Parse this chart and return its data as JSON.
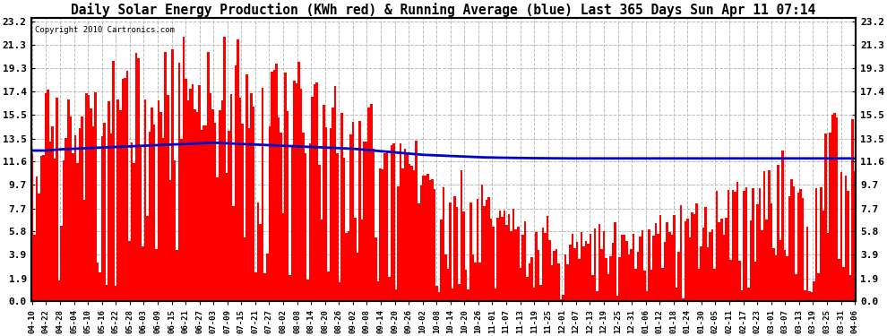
{
  "title": "Daily Solar Energy Production (KWh red) & Running Average (blue) Last 365 Days Sun Apr 11 07:14",
  "copyright": "Copyright 2010 Cartronics.com",
  "yticks": [
    0.0,
    1.9,
    3.9,
    5.8,
    7.7,
    9.7,
    11.6,
    13.5,
    15.5,
    17.4,
    19.3,
    21.3,
    23.2
  ],
  "ylim": [
    0.0,
    23.5
  ],
  "bar_color": "#ff0000",
  "avg_color": "#0000cc",
  "bg_color": "#ffffff",
  "grid_color": "#bbbbbb",
  "title_fontsize": 10.5,
  "xlabel_fontsize": 6.5,
  "ylabel_fontsize": 8,
  "xtick_labels": [
    "04-10",
    "04-22",
    "04-28",
    "05-04",
    "05-10",
    "05-16",
    "05-22",
    "05-28",
    "06-03",
    "06-09",
    "06-15",
    "06-21",
    "06-27",
    "07-03",
    "07-09",
    "07-15",
    "07-21",
    "07-27",
    "08-02",
    "08-08",
    "08-14",
    "08-20",
    "08-26",
    "09-02",
    "09-08",
    "09-14",
    "09-20",
    "09-26",
    "10-02",
    "10-08",
    "10-14",
    "10-20",
    "10-26",
    "11-01",
    "11-07",
    "11-13",
    "11-19",
    "11-25",
    "12-01",
    "12-07",
    "12-13",
    "12-19",
    "12-25",
    "12-31",
    "01-06",
    "01-12",
    "01-18",
    "01-24",
    "01-30",
    "02-05",
    "02-11",
    "02-17",
    "02-23",
    "03-01",
    "03-07",
    "03-13",
    "03-19",
    "03-25",
    "03-31",
    "04-06"
  ],
  "num_days": 365,
  "avg_line": [
    12.5,
    12.5,
    12.6,
    12.65,
    12.7,
    12.75,
    12.8,
    12.85,
    12.9,
    12.95,
    13.0,
    13.05,
    13.1,
    13.15,
    13.1,
    13.05,
    13.0,
    12.95,
    12.9,
    12.85,
    12.8,
    12.75,
    12.7,
    12.65,
    12.55,
    12.45,
    12.35,
    12.25,
    12.15,
    12.1,
    12.05,
    12.0,
    11.95,
    11.92,
    11.9,
    11.88,
    11.87,
    11.86,
    11.85,
    11.85,
    11.85,
    11.85,
    11.85,
    11.85,
    11.85,
    11.85,
    11.85,
    11.85,
    11.85,
    11.85,
    11.85,
    11.85,
    11.85,
    11.85,
    11.85,
    11.85,
    11.85,
    11.85,
    11.85,
    11.85
  ]
}
